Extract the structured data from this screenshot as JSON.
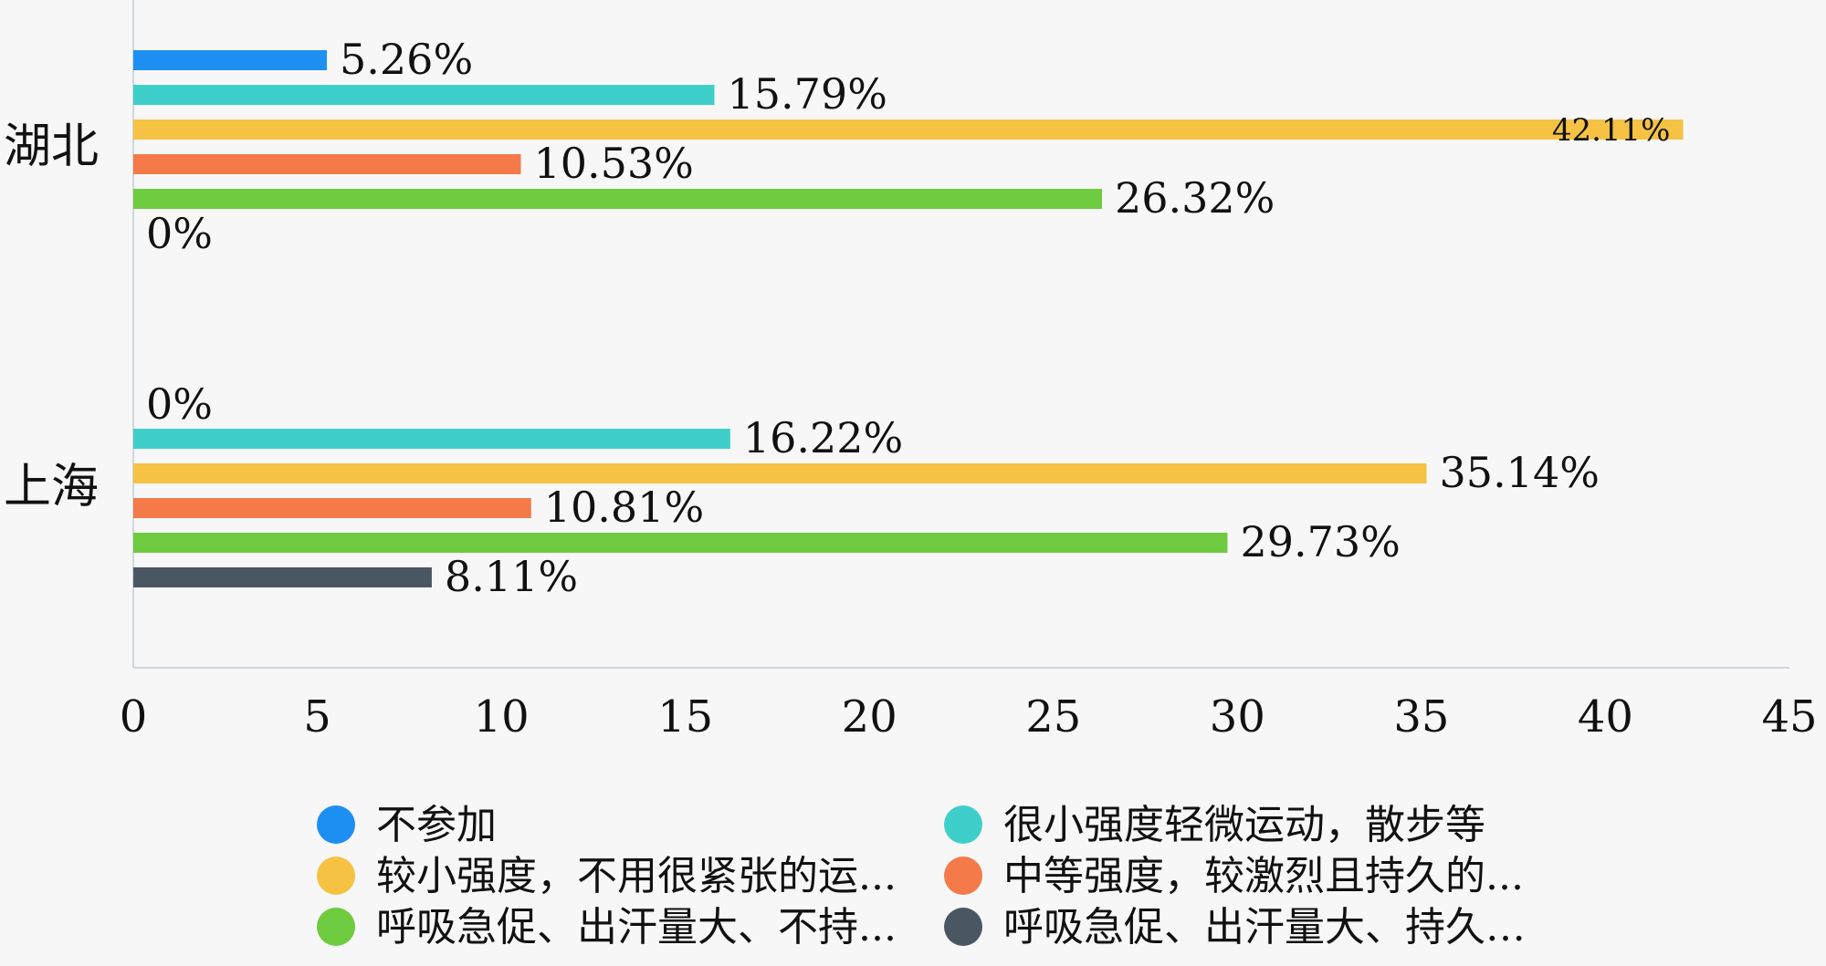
{
  "chart_data": {
    "type": "bar",
    "orientation": "horizontal",
    "categories": [
      "湖北",
      "上海"
    ],
    "series": [
      {
        "name": "不参加",
        "color": "#1E8FF2",
        "values": [
          5.26,
          0
        ],
        "labels": [
          "5.26%",
          "0%"
        ]
      },
      {
        "name": "很小强度轻微运动，散步等",
        "color": "#3FCFCB",
        "values": [
          15.79,
          16.22
        ],
        "labels": [
          "15.79%",
          "16.22%"
        ]
      },
      {
        "name": "较小强度，不用很紧张的运...",
        "color": "#F5C244",
        "values": [
          42.11,
          35.14
        ],
        "labels": [
          "42.11%",
          "35.14%"
        ]
      },
      {
        "name": "中等强度，较激烈且持久的...",
        "color": "#F47A4A",
        "values": [
          10.53,
          10.81
        ],
        "labels": [
          "10.53%",
          "10.81%"
        ]
      },
      {
        "name": "呼吸急促、出汗量大、不持...",
        "color": "#6ECB3F",
        "values": [
          26.32,
          29.73
        ],
        "labels": [
          "26.32%",
          "29.73%"
        ]
      },
      {
        "name": "呼吸急促、出汗量大、持久…",
        "color": "#4A5763",
        "values": [
          0,
          8.11
        ],
        "labels": [
          "0%",
          "8.11%"
        ]
      }
    ],
    "xlim": [
      0,
      45
    ],
    "xticks": [
      "0",
      "5",
      "10",
      "15",
      "20",
      "25",
      "30",
      "35",
      "40",
      "45"
    ],
    "grid": false,
    "legend_position": "bottom"
  }
}
